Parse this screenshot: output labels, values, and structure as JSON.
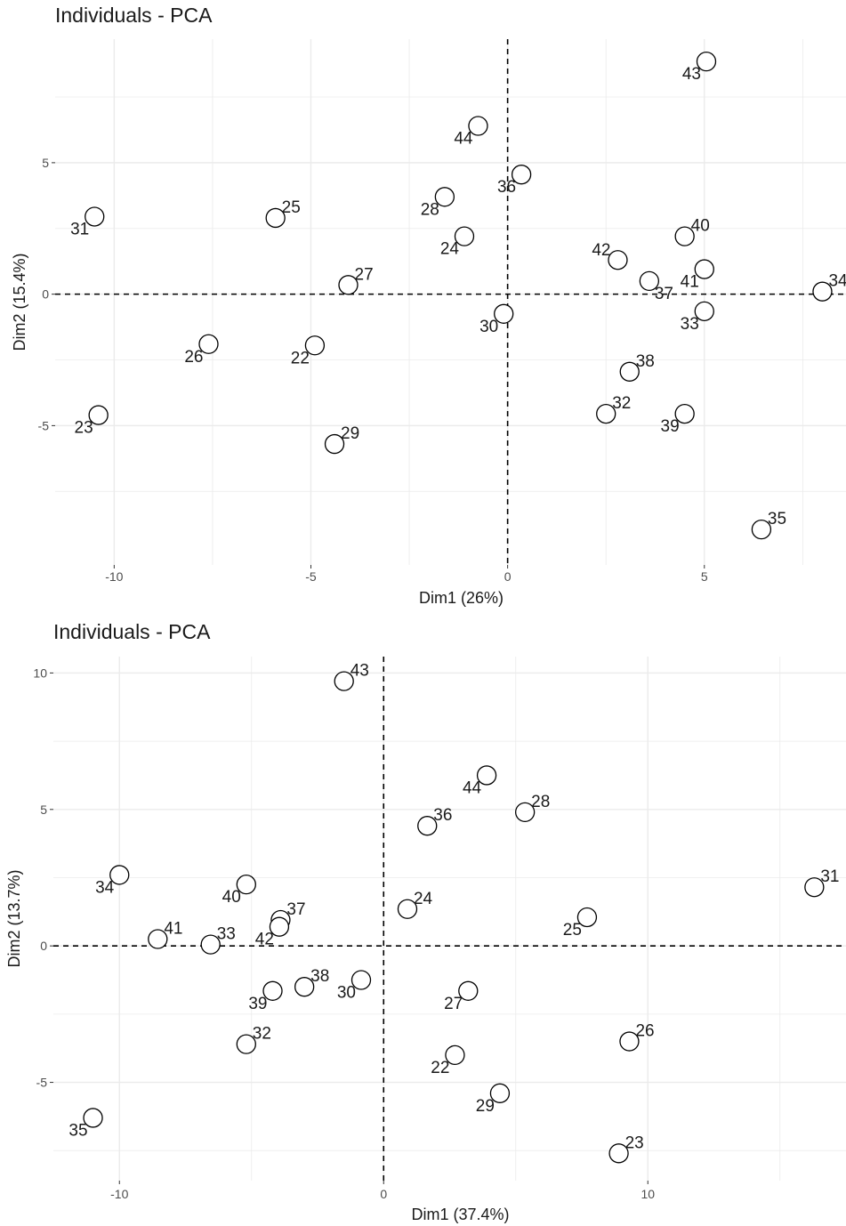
{
  "chart_data": [
    {
      "type": "scatter",
      "title": "Individuals - PCA",
      "xlabel": "Dim1 (26%)",
      "ylabel": "Dim2 (15.4%)",
      "xlim": [
        -11.5,
        8.6
      ],
      "ylim": [
        -10.3,
        9.7
      ],
      "xticks": [
        -10,
        -5,
        0,
        5
      ],
      "yticks": [
        -5,
        0,
        5
      ],
      "tick_labels_x": [
        "-10",
        "-5",
        "0",
        "5"
      ],
      "tick_labels_y": [
        "-5",
        "0",
        "5"
      ],
      "grid": true,
      "reference_lines": {
        "x": 0,
        "y": 0,
        "style": "dashed"
      },
      "points": [
        {
          "label": "22",
          "x": -4.9,
          "y": -1.95,
          "label_pos": "bl"
        },
        {
          "label": "23",
          "x": -10.4,
          "y": -4.6,
          "label_pos": "bl"
        },
        {
          "label": "24",
          "x": -1.1,
          "y": 2.2,
          "label_pos": "bl"
        },
        {
          "label": "25",
          "x": -5.9,
          "y": 2.9,
          "label_pos": "tr"
        },
        {
          "label": "26",
          "x": -7.6,
          "y": -1.9,
          "label_pos": "bl"
        },
        {
          "label": "27",
          "x": -4.05,
          "y": 0.35,
          "label_pos": "tr"
        },
        {
          "label": "28",
          "x": -1.6,
          "y": 3.7,
          "label_pos": "bl"
        },
        {
          "label": "29",
          "x": -4.4,
          "y": -5.7,
          "label_pos": "tr"
        },
        {
          "label": "30",
          "x": -0.1,
          "y": -0.75,
          "label_pos": "bl"
        },
        {
          "label": "31",
          "x": -10.5,
          "y": 2.95,
          "label_pos": "bl"
        },
        {
          "label": "32",
          "x": 2.5,
          "y": -4.55,
          "label_pos": "tr"
        },
        {
          "label": "33",
          "x": 5.0,
          "y": -0.65,
          "label_pos": "bl"
        },
        {
          "label": "34",
          "x": 8.0,
          "y": 0.1,
          "label_pos": "tr"
        },
        {
          "label": "35",
          "x": 6.45,
          "y": -8.95,
          "label_pos": "tr"
        },
        {
          "label": "36",
          "x": 0.35,
          "y": 4.55,
          "label_pos": "bl"
        },
        {
          "label": "37",
          "x": 3.6,
          "y": 0.5,
          "label_pos": "br"
        },
        {
          "label": "38",
          "x": 3.1,
          "y": -2.95,
          "label_pos": "tr"
        },
        {
          "label": "39",
          "x": 4.5,
          "y": -4.55,
          "label_pos": "bl"
        },
        {
          "label": "40",
          "x": 4.5,
          "y": 2.2,
          "label_pos": "tr"
        },
        {
          "label": "41",
          "x": 5.0,
          "y": 0.95,
          "label_pos": "bl"
        },
        {
          "label": "42",
          "x": 2.8,
          "y": 1.3,
          "label_pos": "tl"
        },
        {
          "label": "43",
          "x": 5.05,
          "y": 8.85,
          "label_pos": "bl"
        },
        {
          "label": "44",
          "x": -0.75,
          "y": 6.4,
          "label_pos": "bl"
        }
      ]
    },
    {
      "type": "scatter",
      "title": "Individuals - PCA",
      "xlabel": "Dim1 (37.4%)",
      "ylabel": "Dim2 (13.7%)",
      "xlim": [
        -12.5,
        17.5
      ],
      "ylim": [
        -8.6,
        10.6
      ],
      "xticks": [
        -10,
        0,
        10
      ],
      "yticks": [
        -5,
        0,
        5,
        10
      ],
      "tick_labels_x": [
        "-10",
        "0",
        "10"
      ],
      "tick_labels_y": [
        "-5",
        "0",
        "5",
        "10"
      ],
      "grid": true,
      "reference_lines": {
        "x": 0,
        "y": 0,
        "style": "dashed"
      },
      "points": [
        {
          "label": "22",
          "x": 2.7,
          "y": -4.0,
          "label_pos": "bl"
        },
        {
          "label": "23",
          "x": 8.9,
          "y": -7.6,
          "label_pos": "tr"
        },
        {
          "label": "24",
          "x": 0.9,
          "y": 1.35,
          "label_pos": "tr"
        },
        {
          "label": "25",
          "x": 7.7,
          "y": 1.05,
          "label_pos": "bl"
        },
        {
          "label": "26",
          "x": 9.3,
          "y": -3.5,
          "label_pos": "tr"
        },
        {
          "label": "27",
          "x": 3.2,
          "y": -1.65,
          "label_pos": "bl"
        },
        {
          "label": "28",
          "x": 5.35,
          "y": 4.9,
          "label_pos": "tr"
        },
        {
          "label": "29",
          "x": 4.4,
          "y": -5.4,
          "label_pos": "bl"
        },
        {
          "label": "30",
          "x": -0.85,
          "y": -1.25,
          "label_pos": "bl"
        },
        {
          "label": "31",
          "x": 16.3,
          "y": 2.15,
          "label_pos": "tr"
        },
        {
          "label": "32",
          "x": -5.2,
          "y": -3.6,
          "label_pos": "tr"
        },
        {
          "label": "33",
          "x": -6.55,
          "y": 0.05,
          "label_pos": "tr"
        },
        {
          "label": "34",
          "x": -10.0,
          "y": 2.6,
          "label_pos": "bl"
        },
        {
          "label": "35",
          "x": -11.0,
          "y": -6.3,
          "label_pos": "bl"
        },
        {
          "label": "36",
          "x": 1.65,
          "y": 4.4,
          "label_pos": "tr"
        },
        {
          "label": "37",
          "x": -3.9,
          "y": 0.95,
          "label_pos": "tr"
        },
        {
          "label": "38",
          "x": -3.0,
          "y": -1.5,
          "label_pos": "tr"
        },
        {
          "label": "39",
          "x": -4.2,
          "y": -1.65,
          "label_pos": "bl"
        },
        {
          "label": "40",
          "x": -5.2,
          "y": 2.25,
          "label_pos": "bl"
        },
        {
          "label": "41",
          "x": -8.55,
          "y": 0.25,
          "label_pos": "tr"
        },
        {
          "label": "42",
          "x": -3.95,
          "y": 0.7,
          "label_pos": "bl"
        },
        {
          "label": "43",
          "x": -1.5,
          "y": 9.7,
          "label_pos": "tr"
        },
        {
          "label": "44",
          "x": 3.9,
          "y": 6.25,
          "label_pos": "bl"
        }
      ]
    }
  ]
}
